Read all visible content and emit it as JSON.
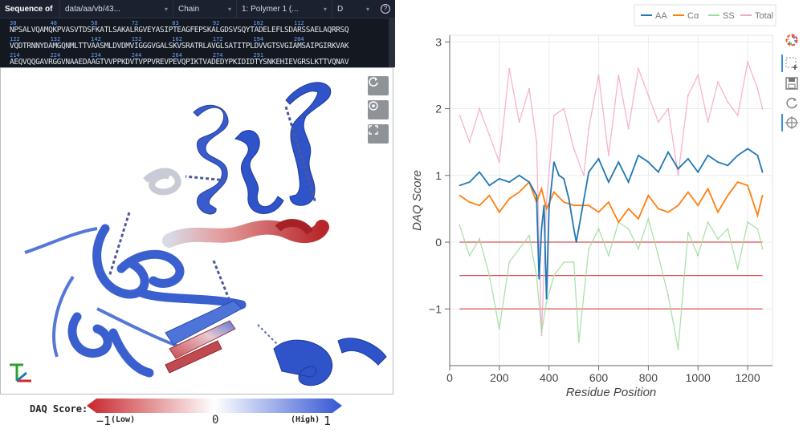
{
  "sequence_panel": {
    "title": "Sequence of",
    "file": "data/aa/vb/43...",
    "chain_label": "Chain",
    "polymer": "1: Polymer 1 (...",
    "chain_id": "D",
    "help_icon": "help-circle-icon",
    "rows": [
      {
        "numbers": "38          48          58          72          83          92          102         112",
        "text": "NPSALVQAMQKPVASVTDSFKATLSAKALRGVEYASIPTEAGFEPSKALGDSVSQYTADELEFLSDARSSAELAQRRSQ"
      },
      {
        "numbers": "122         132         142         152         162         172         194         204",
        "text": "VQDTRNNYDAMGQNMLTTVAASMLDVDMVIGGGVGALSKVSRATRLAVGLSATITPLDVVGTSVGIAMSAIPGIRKVAK"
      },
      {
        "numbers": "214         224         234         244         264         274         291",
        "text": "AEQVQQGAVRGGVNAAEDAAGTVVPPKDVTVPPVREVPEVQPIKTVADEDYPKIDIDTYSNKEHIEVGRSLKTTVQNAV"
      }
    ]
  },
  "viewer": {
    "buttons": [
      {
        "name": "reset-camera-button",
        "icon": "refresh-icon"
      },
      {
        "name": "focus-button",
        "icon": "target-icon"
      },
      {
        "name": "expand-button",
        "icon": "expand-icon"
      }
    ],
    "axes_icon": "xyz-axes-icon"
  },
  "color_legend": {
    "label": "DAQ Score:",
    "min_value": "−1",
    "min_note": "(Low)",
    "mid_value": "0",
    "max_note": "(High)",
    "max_value": "1",
    "colors": {
      "low": "#c8262c",
      "mid": "#ffffff",
      "high": "#3356d3"
    }
  },
  "chart_data": {
    "type": "line",
    "xlabel": "Residue Position",
    "ylabel": "DAQ Score",
    "xlim": [
      0,
      1300
    ],
    "ylim": [
      -1.85,
      3.1
    ],
    "x_ticks": [
      0,
      200,
      400,
      600,
      800,
      1000,
      1200
    ],
    "y_ticks": [
      -1,
      0,
      1,
      2,
      3
    ],
    "y_tick_labels": [
      "−1",
      "0",
      "1",
      "2",
      "3"
    ],
    "grid": true,
    "legend_position": "top-right",
    "reference_lines": [
      0,
      -0.5,
      -1
    ],
    "reference_color": "#d62728",
    "series": [
      {
        "name": "AA",
        "color": "#1f77b4",
        "x": [
          40,
          80,
          120,
          160,
          200,
          240,
          280,
          320,
          350,
          360,
          370,
          380,
          390,
          400,
          420,
          440,
          460,
          480,
          500,
          510,
          560,
          600,
          640,
          680,
          720,
          760,
          800,
          840,
          880,
          920,
          960,
          1000,
          1040,
          1080,
          1120,
          1160,
          1200,
          1240,
          1260
        ],
        "y": [
          0.85,
          0.9,
          1.05,
          0.85,
          0.95,
          0.9,
          1.0,
          0.9,
          0.7,
          -0.55,
          0.2,
          0.55,
          -0.85,
          0.5,
          1.2,
          1.0,
          0.95,
          0.65,
          0.2,
          0.0,
          1.05,
          1.25,
          0.9,
          1.2,
          0.9,
          1.3,
          1.2,
          1.05,
          1.35,
          1.1,
          1.25,
          1.05,
          1.3,
          1.2,
          1.15,
          1.3,
          1.4,
          1.3,
          1.05
        ]
      },
      {
        "name": "Cα",
        "color": "#ff7f0e",
        "x": [
          40,
          80,
          120,
          160,
          200,
          240,
          280,
          320,
          350,
          370,
          390,
          420,
          460,
          500,
          560,
          600,
          640,
          680,
          720,
          760,
          800,
          840,
          880,
          920,
          960,
          1000,
          1040,
          1080,
          1120,
          1160,
          1200,
          1240,
          1260
        ],
        "y": [
          0.7,
          0.6,
          0.55,
          0.7,
          0.45,
          0.65,
          0.75,
          0.9,
          0.6,
          0.8,
          0.5,
          0.75,
          0.6,
          0.55,
          0.55,
          0.45,
          0.6,
          0.3,
          0.5,
          0.35,
          0.7,
          0.5,
          0.45,
          0.55,
          0.75,
          0.55,
          0.8,
          0.45,
          0.7,
          0.9,
          0.85,
          0.4,
          0.7
        ]
      },
      {
        "name": "SS",
        "color": "#9edc9b",
        "x": [
          40,
          80,
          120,
          160,
          200,
          240,
          280,
          320,
          350,
          370,
          390,
          420,
          460,
          500,
          520,
          560,
          600,
          640,
          680,
          720,
          760,
          800,
          840,
          880,
          920,
          960,
          1000,
          1040,
          1080,
          1120,
          1160,
          1200,
          1240,
          1260
        ],
        "y": [
          0.25,
          -0.2,
          0.05,
          -0.5,
          -1.3,
          -0.3,
          -0.1,
          0.1,
          -0.5,
          -1.35,
          -0.9,
          -0.5,
          -0.3,
          -0.3,
          -1.5,
          -0.1,
          0.2,
          -0.2,
          0.3,
          0.2,
          -0.1,
          0.35,
          -0.2,
          -0.8,
          -1.6,
          0.15,
          -0.2,
          0.3,
          0.05,
          0.2,
          -0.4,
          0.3,
          0.2,
          -0.1
        ]
      },
      {
        "name": "Total",
        "color": "#f4a6c9",
        "x": [
          40,
          80,
          120,
          160,
          200,
          240,
          280,
          320,
          350,
          370,
          390,
          420,
          460,
          500,
          540,
          560,
          600,
          640,
          680,
          720,
          760,
          800,
          840,
          880,
          920,
          960,
          1000,
          1040,
          1080,
          1120,
          1160,
          1200,
          1240,
          1260
        ],
        "y": [
          1.9,
          1.5,
          2.0,
          1.6,
          1.2,
          2.6,
          1.8,
          2.3,
          1.5,
          -1.4,
          0.6,
          1.9,
          2.0,
          1.4,
          1.0,
          1.7,
          2.5,
          1.3,
          2.5,
          1.7,
          2.6,
          2.2,
          1.8,
          2.0,
          1.0,
          2.2,
          2.5,
          1.8,
          2.4,
          2.1,
          1.9,
          2.7,
          2.3,
          2.0
        ]
      }
    ]
  },
  "chart_toolbar": [
    {
      "name": "bokeh-logo",
      "icon": "bokeh-logo-icon"
    },
    {
      "name": "box-zoom-tool",
      "icon": "box-zoom-icon"
    },
    {
      "name": "save-tool",
      "icon": "save-icon"
    },
    {
      "name": "reset-tool",
      "icon": "reset-icon"
    },
    {
      "name": "hover-tool",
      "icon": "crosshair-icon"
    }
  ]
}
